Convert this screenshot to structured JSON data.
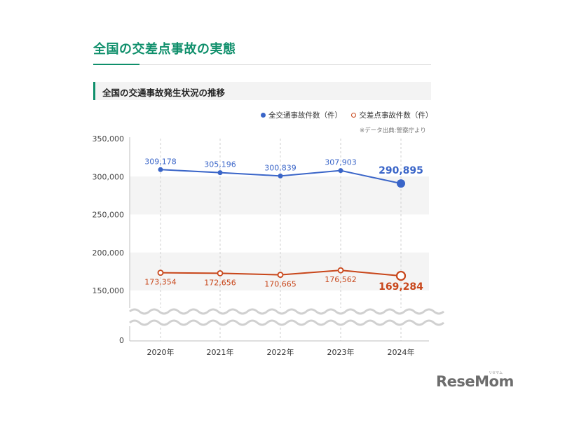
{
  "page": {
    "title": "全国の交差点事故の実態",
    "subtitle": "全国の交通事故発生状況の推移",
    "source_note": "※データ出典:警察庁より",
    "logo": "ReseMom",
    "logo_small": "リセマム"
  },
  "colors": {
    "accent": "#0f8f6b",
    "series_all": "#3a65c8",
    "series_intersection": "#c8461a"
  },
  "chart_data": {
    "type": "line",
    "x": [
      "2020年",
      "2021年",
      "2022年",
      "2023年",
      "2024年"
    ],
    "y_ticks": [
      "350,000",
      "300,000",
      "250,000",
      "200,000",
      "150,000",
      "0"
    ],
    "y_axis_break": [
      0,
      150000
    ],
    "ylim": [
      0,
      350000
    ],
    "legend_position": "top-right",
    "series": [
      {
        "name": "全交通事故件数（件）",
        "values": [
          309178,
          305196,
          300839,
          307903,
          290895
        ],
        "labels": [
          "309,178",
          "305,196",
          "300,839",
          "307,903",
          "290,895"
        ]
      },
      {
        "name": "交差点事故件数（件）",
        "values": [
          173354,
          172656,
          170665,
          176562,
          169284
        ],
        "labels": [
          "173,354",
          "172,656",
          "170,665",
          "176,562",
          "169,284"
        ]
      }
    ]
  }
}
